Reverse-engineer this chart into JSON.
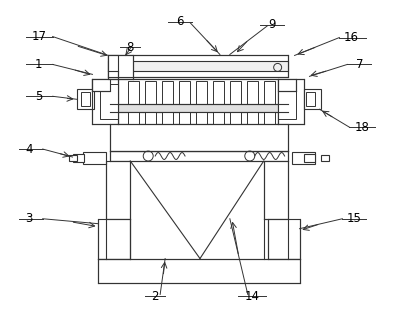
{
  "bg": "#ffffff",
  "lc": "#333333",
  "lw": 0.8,
  "figsize": [
    3.95,
    3.19
  ],
  "dpi": 100
}
